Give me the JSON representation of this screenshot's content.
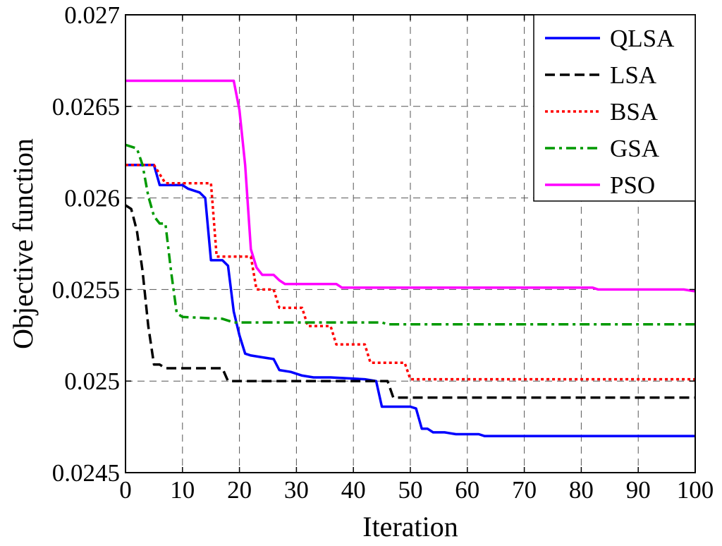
{
  "chart_data": {
    "type": "line",
    "title": "",
    "xlabel": "Iteration",
    "ylabel": "Objective function",
    "xlim": [
      0,
      100
    ],
    "ylim": [
      0.0245,
      0.027
    ],
    "xticks": [
      0,
      10,
      20,
      30,
      40,
      50,
      60,
      70,
      80,
      90,
      100
    ],
    "xtick_labels": [
      "0",
      "10",
      "20",
      "30",
      "40",
      "50",
      "60",
      "70",
      "80",
      "90",
      "100"
    ],
    "yticks": [
      0.0245,
      0.025,
      0.0255,
      0.026,
      0.0265,
      0.027
    ],
    "ytick_labels": [
      "0.0245",
      "0.025",
      "0.0255",
      "0.026",
      "0.0265",
      "0.027"
    ],
    "grid": true,
    "legend": "top-right",
    "series": [
      {
        "name": "QLSA",
        "color": "#0000ff",
        "dash": "solid",
        "points": [
          [
            0,
            0.02618
          ],
          [
            5,
            0.02618
          ],
          [
            6,
            0.02607
          ],
          [
            10,
            0.02607
          ],
          [
            11,
            0.02605
          ],
          [
            13,
            0.02603
          ],
          [
            14,
            0.026
          ],
          [
            15,
            0.02566
          ],
          [
            17,
            0.02566
          ],
          [
            18,
            0.02563
          ],
          [
            19,
            0.02538
          ],
          [
            20,
            0.02525
          ],
          [
            21,
            0.02515
          ],
          [
            22,
            0.02514
          ],
          [
            24,
            0.02513
          ],
          [
            26,
            0.02512
          ],
          [
            27,
            0.02506
          ],
          [
            29,
            0.02505
          ],
          [
            31,
            0.02503
          ],
          [
            33,
            0.02502
          ],
          [
            36,
            0.02502
          ],
          [
            42,
            0.02501
          ],
          [
            44,
            0.025
          ],
          [
            45,
            0.02486
          ],
          [
            50,
            0.02486
          ],
          [
            51,
            0.02485
          ],
          [
            52,
            0.02474
          ],
          [
            53,
            0.02474
          ],
          [
            54,
            0.02472
          ],
          [
            56,
            0.02472
          ],
          [
            58,
            0.02471
          ],
          [
            62,
            0.02471
          ],
          [
            63,
            0.0247
          ],
          [
            100,
            0.0247
          ]
        ]
      },
      {
        "name": "LSA",
        "color": "#000000",
        "dash": "dashed",
        "points": [
          [
            0,
            0.02596
          ],
          [
            1,
            0.02594
          ],
          [
            2,
            0.02582
          ],
          [
            3,
            0.0256
          ],
          [
            4,
            0.0253
          ],
          [
            5,
            0.02509
          ],
          [
            6,
            0.02509
          ],
          [
            7,
            0.02507
          ],
          [
            17,
            0.02507
          ],
          [
            18,
            0.025
          ],
          [
            46,
            0.025
          ],
          [
            47,
            0.02491
          ],
          [
            100,
            0.02491
          ]
        ]
      },
      {
        "name": "BSA",
        "color": "#ff0000",
        "dash": "dotted",
        "points": [
          [
            0,
            0.02618
          ],
          [
            5,
            0.02618
          ],
          [
            6,
            0.02613
          ],
          [
            7,
            0.02608
          ],
          [
            15,
            0.02608
          ],
          [
            16,
            0.02568
          ],
          [
            22,
            0.02568
          ],
          [
            23,
            0.0255
          ],
          [
            26,
            0.0255
          ],
          [
            27,
            0.0254
          ],
          [
            31,
            0.0254
          ],
          [
            32,
            0.0253
          ],
          [
            36,
            0.0253
          ],
          [
            37,
            0.0252
          ],
          [
            42,
            0.0252
          ],
          [
            43,
            0.0251
          ],
          [
            49,
            0.0251
          ],
          [
            50,
            0.02501
          ],
          [
            100,
            0.02501
          ]
        ]
      },
      {
        "name": "GSA",
        "color": "#009900",
        "dash": "dashdot",
        "points": [
          [
            0,
            0.02629
          ],
          [
            2,
            0.02627
          ],
          [
            3,
            0.02618
          ],
          [
            4,
            0.02601
          ],
          [
            5,
            0.0259
          ],
          [
            6,
            0.02586
          ],
          [
            7,
            0.02586
          ],
          [
            8,
            0.0256
          ],
          [
            9,
            0.02537
          ],
          [
            10,
            0.02535
          ],
          [
            17,
            0.02534
          ],
          [
            19,
            0.02532
          ],
          [
            45,
            0.02532
          ],
          [
            46,
            0.02531
          ],
          [
            100,
            0.02531
          ]
        ]
      },
      {
        "name": "PSO",
        "color": "#ff00ff",
        "dash": "solid",
        "points": [
          [
            0,
            0.02664
          ],
          [
            19,
            0.02664
          ],
          [
            20,
            0.02648
          ],
          [
            21,
            0.02618
          ],
          [
            22,
            0.02572
          ],
          [
            23,
            0.02562
          ],
          [
            24,
            0.02558
          ],
          [
            26,
            0.02558
          ],
          [
            27,
            0.02555
          ],
          [
            28,
            0.02553
          ],
          [
            37,
            0.02553
          ],
          [
            38,
            0.02551
          ],
          [
            82,
            0.02551
          ],
          [
            83,
            0.0255
          ],
          [
            98,
            0.0255
          ],
          [
            100,
            0.02549
          ]
        ]
      }
    ]
  }
}
